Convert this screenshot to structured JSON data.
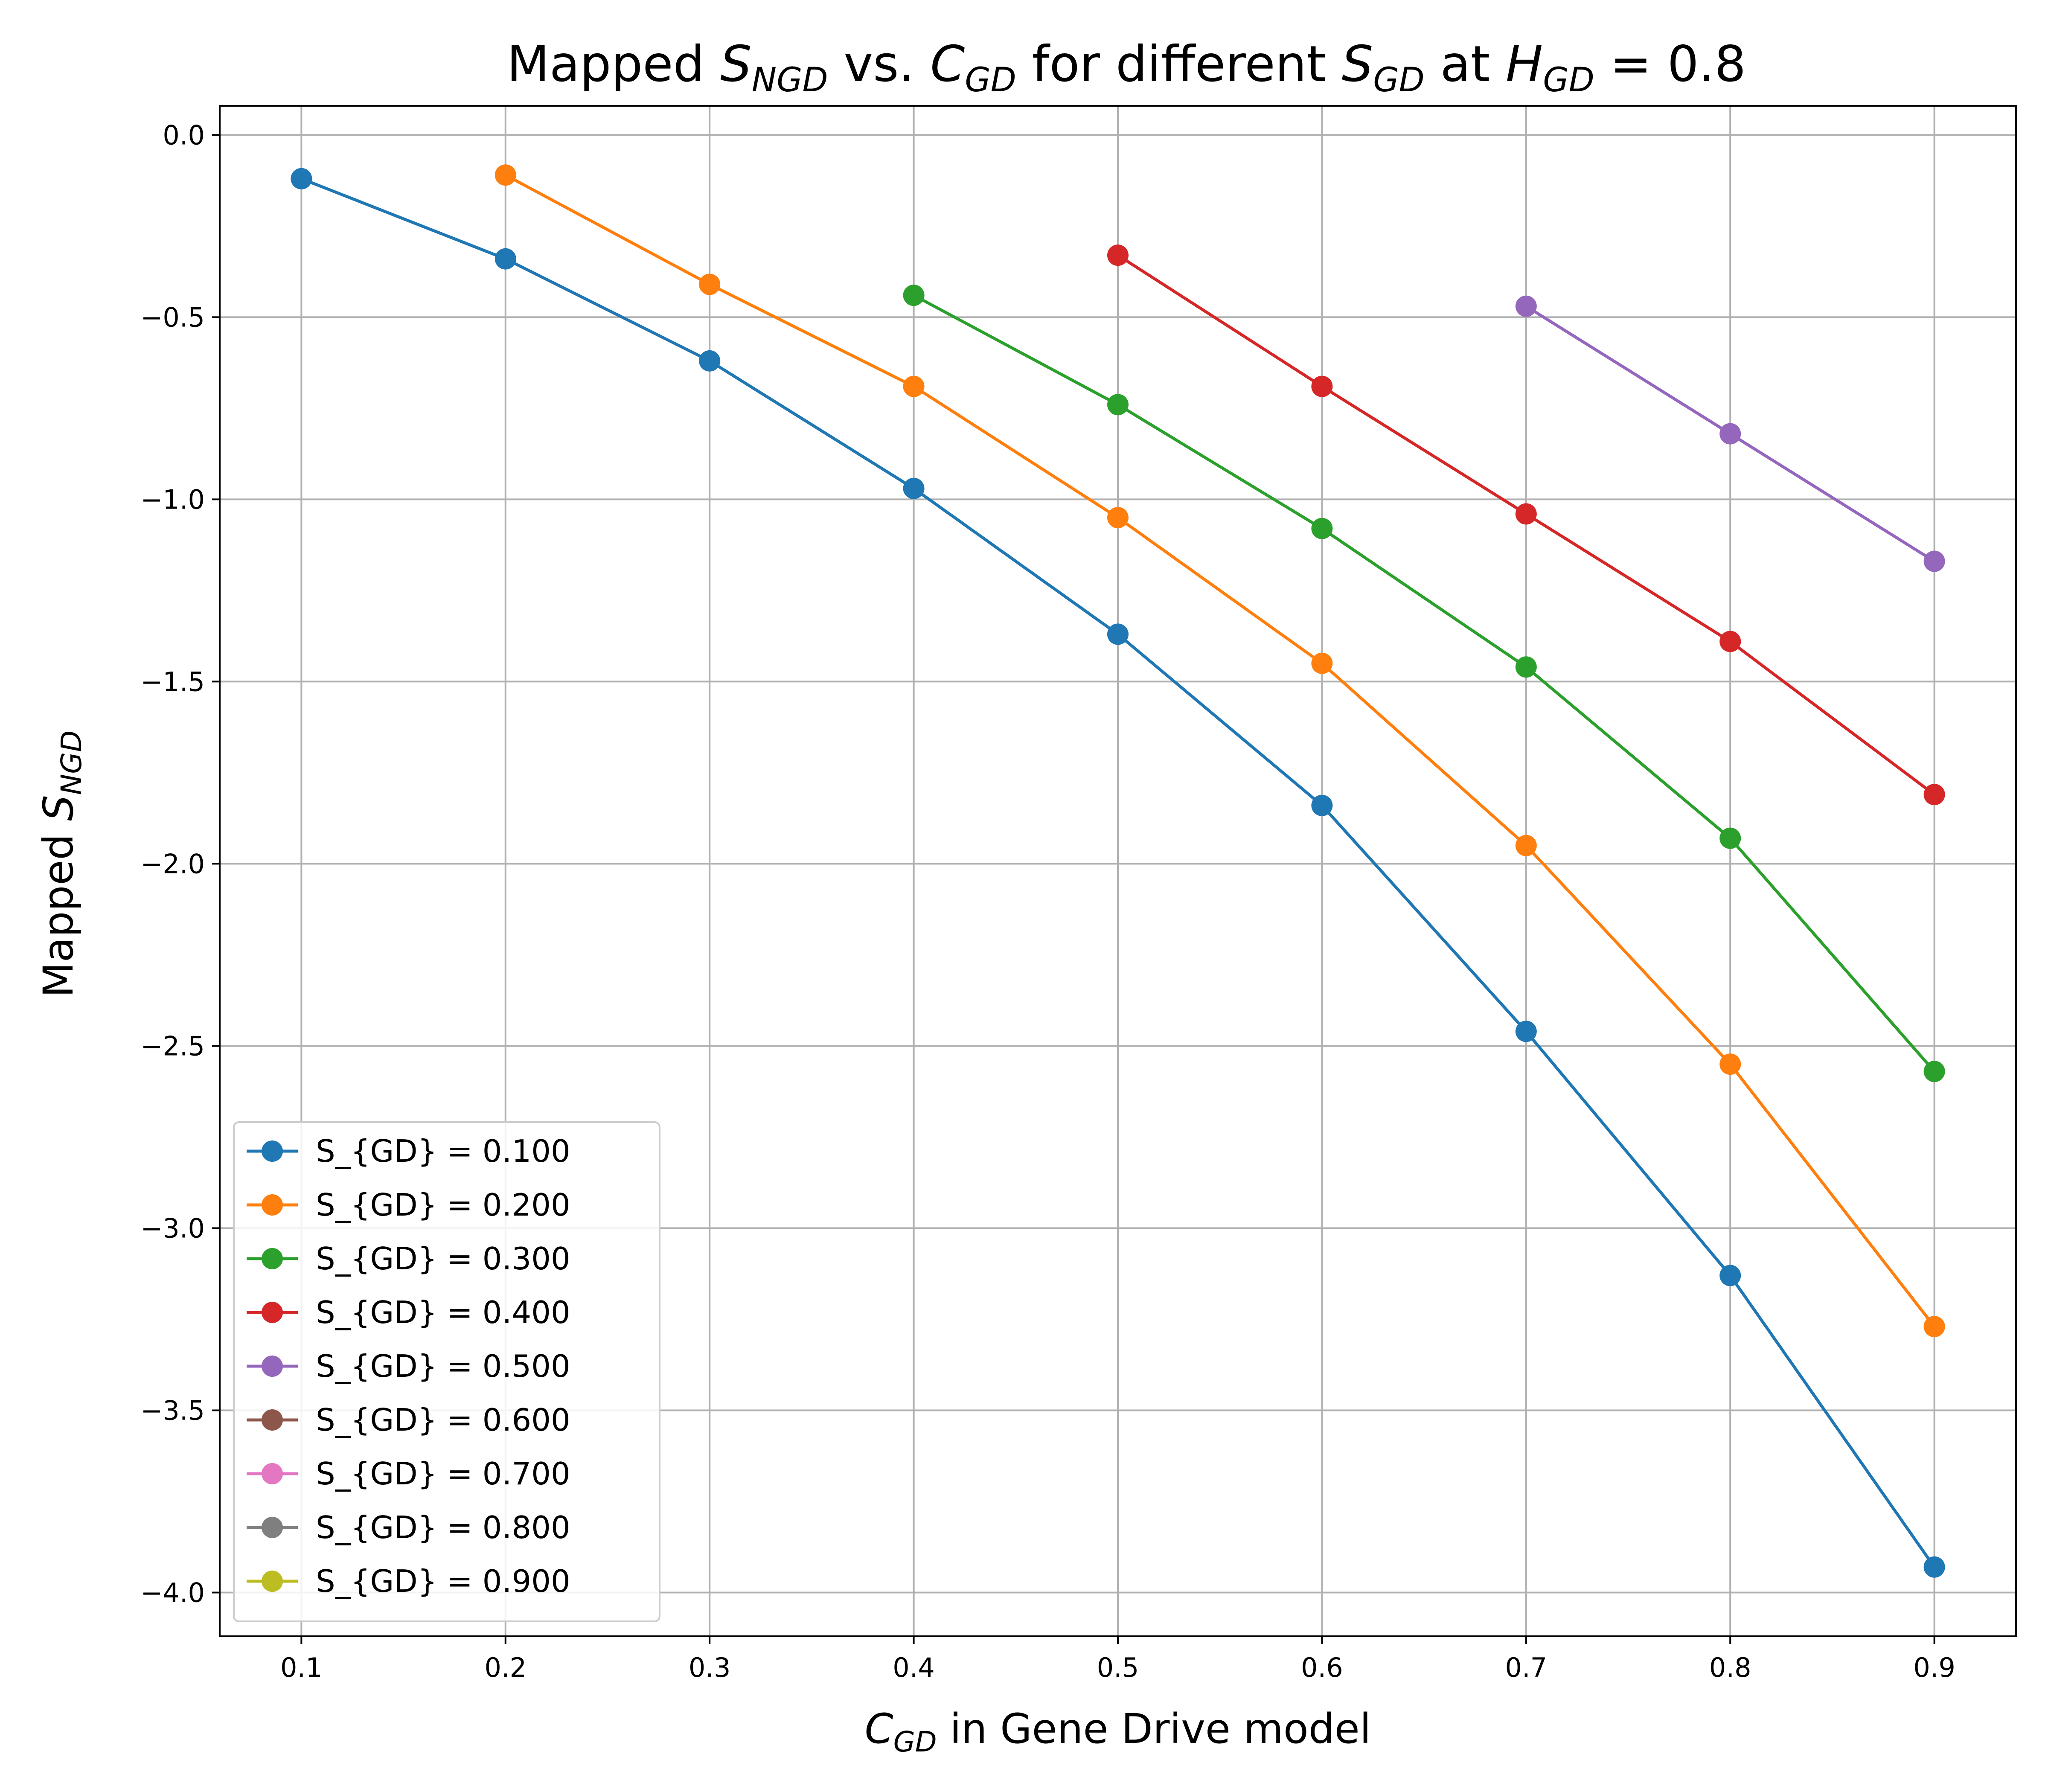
{
  "chart_data": {
    "type": "line",
    "title": {
      "pre": "Mapped ",
      "sym1": "S",
      "sub1": "NGD",
      "mid1": " vs. ",
      "sym2": "C",
      "sub2": "GD",
      "mid2": " for different ",
      "sym3": "S",
      "sub3": "GD",
      "mid3": " at ",
      "sym4": "H",
      "sub4": "GD",
      "post": " = 0.8"
    },
    "xlabel": {
      "sym": "C",
      "sub": "GD",
      "text": " in Gene Drive model"
    },
    "ylabel": {
      "text": "Mapped ",
      "sym": "S",
      "sub": "NGD"
    },
    "xlim": [
      0.06,
      0.94
    ],
    "ylim": [
      -4.12,
      0.08
    ],
    "xticks": [
      0.1,
      0.2,
      0.3,
      0.4,
      0.5,
      0.6,
      0.7,
      0.8,
      0.9
    ],
    "xtick_labels": [
      "0.1",
      "0.2",
      "0.3",
      "0.4",
      "0.5",
      "0.6",
      "0.7",
      "0.8",
      "0.9"
    ],
    "yticks": [
      0.0,
      -0.5,
      -1.0,
      -1.5,
      -2.0,
      -2.5,
      -3.0,
      -3.5,
      -4.0
    ],
    "ytick_labels": [
      "0.0",
      "−0.5",
      "−1.0",
      "−1.5",
      "−2.0",
      "−2.5",
      "−3.0",
      "−3.5",
      "−4.0"
    ],
    "grid": true,
    "legend_position": "lower-left",
    "series": [
      {
        "name": "S_{GD} = 0.100",
        "color": "#1f77b4",
        "x": [
          0.1,
          0.2,
          0.3,
          0.4,
          0.5,
          0.6,
          0.7,
          0.8,
          0.9
        ],
        "y": [
          -0.12,
          -0.34,
          -0.62,
          -0.97,
          -1.37,
          -1.84,
          -2.46,
          -3.13,
          -3.93
        ]
      },
      {
        "name": "S_{GD} = 0.200",
        "color": "#ff7f0e",
        "x": [
          0.2,
          0.3,
          0.4,
          0.5,
          0.6,
          0.7,
          0.8,
          0.9
        ],
        "y": [
          -0.11,
          -0.41,
          -0.69,
          -1.05,
          -1.45,
          -1.95,
          -2.55,
          -3.27
        ]
      },
      {
        "name": "S_{GD} = 0.300",
        "color": "#2ca02c",
        "x": [
          0.4,
          0.5,
          0.6,
          0.7,
          0.8,
          0.9
        ],
        "y": [
          -0.44,
          -0.74,
          -1.08,
          -1.46,
          -1.93,
          -2.57
        ]
      },
      {
        "name": "S_{GD} = 0.400",
        "color": "#d62728",
        "x": [
          0.5,
          0.6,
          0.7,
          0.8,
          0.9
        ],
        "y": [
          -0.33,
          -0.69,
          -1.04,
          -1.39,
          -1.81
        ]
      },
      {
        "name": "S_{GD} = 0.500",
        "color": "#9467bd",
        "x": [
          0.7,
          0.8,
          0.9
        ],
        "y": [
          -0.47,
          -0.82,
          -1.17
        ]
      },
      {
        "name": "S_{GD} = 0.600",
        "color": "#8c564b",
        "x": [],
        "y": []
      },
      {
        "name": "S_{GD} = 0.700",
        "color": "#e377c2",
        "x": [],
        "y": []
      },
      {
        "name": "S_{GD} = 0.800",
        "color": "#7f7f7f",
        "x": [],
        "y": []
      },
      {
        "name": "S_{GD} = 0.900",
        "color": "#bcbd22",
        "x": [],
        "y": []
      }
    ]
  }
}
